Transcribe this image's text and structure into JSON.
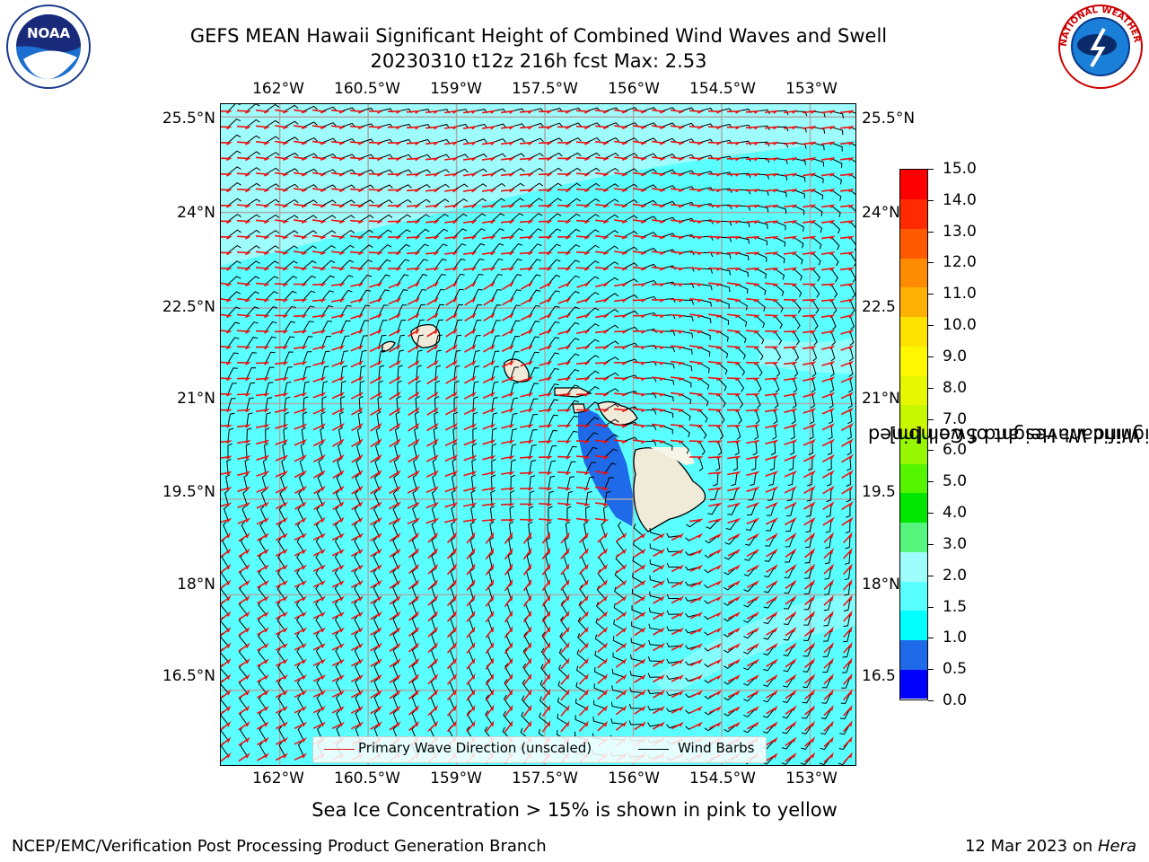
{
  "header": {
    "title_line1": "GEFS MEAN Hawaii Significant Height of Combined Wind Waves and Swell",
    "title_line2": "20230310 t12z 216h fcst   Max: 2.53"
  },
  "map": {
    "lon_labels": [
      "162°W",
      "160.5°W",
      "159°W",
      "157.5°W",
      "156°W",
      "154.5°W",
      "153°W"
    ],
    "lat_labels": [
      "25.5°N",
      "24°N",
      "22.5°N",
      "21°N",
      "19.5°N",
      "18°N",
      "16.5°N"
    ],
    "lat_labels_right": [
      "25.5°N",
      "24°N",
      "22.5",
      "21°N",
      "19.5",
      "18°N",
      "16.5"
    ],
    "lon_range": [
      -163,
      -152.2
    ],
    "lat_range": [
      15.3,
      25.7
    ],
    "background_wave_height_m": 1.6,
    "colors": {
      "ocean": "#5affff",
      "ocean_light": "#9ffcfc",
      "land": "#f0ebd8",
      "coast": "#000000",
      "wave_arrow": "#ee1111",
      "barb": "#000000",
      "shadow": "#1e6ae8",
      "grid": "#aaaaaa"
    }
  },
  "legend": {
    "wave_direction": "Primary Wave Direction (unscaled)",
    "wind_barbs": "Wind Barbs"
  },
  "colorbar": {
    "title_line1": "Significant Height of Combined",
    "title_line2": "Wind Waves and Swell [m]",
    "ticks": [
      "15.0",
      "14.0",
      "13.0",
      "12.0",
      "11.0",
      "10.0",
      "9.0",
      "8.0",
      "7.0",
      "6.0",
      "5.0",
      "4.0",
      "3.0",
      "2.0",
      "1.5",
      "1.0",
      "0.5",
      "0.0"
    ],
    "colors_bottom_to_top": [
      "#0000ff",
      "#1e6ae8",
      "#00ffff",
      "#5affff",
      "#9ffcfc",
      "#55f57e",
      "#00e600",
      "#55f500",
      "#97f700",
      "#c8f700",
      "#e6f700",
      "#fff700",
      "#ffe300",
      "#ffb000",
      "#ff8c00",
      "#ff5a00",
      "#ff2a00",
      "#ff0000"
    ]
  },
  "footer": {
    "note": "Sea Ice Concentration > 15% is shown in pink to yellow",
    "left": "NCEP/EMC/Verification Post Processing Product Generation Branch",
    "right_date": "12 Mar 2023 on ",
    "right_host": "Hera"
  },
  "logos": {
    "left": "NOAA",
    "right": "NATIONAL WEATHER SERVICE"
  }
}
